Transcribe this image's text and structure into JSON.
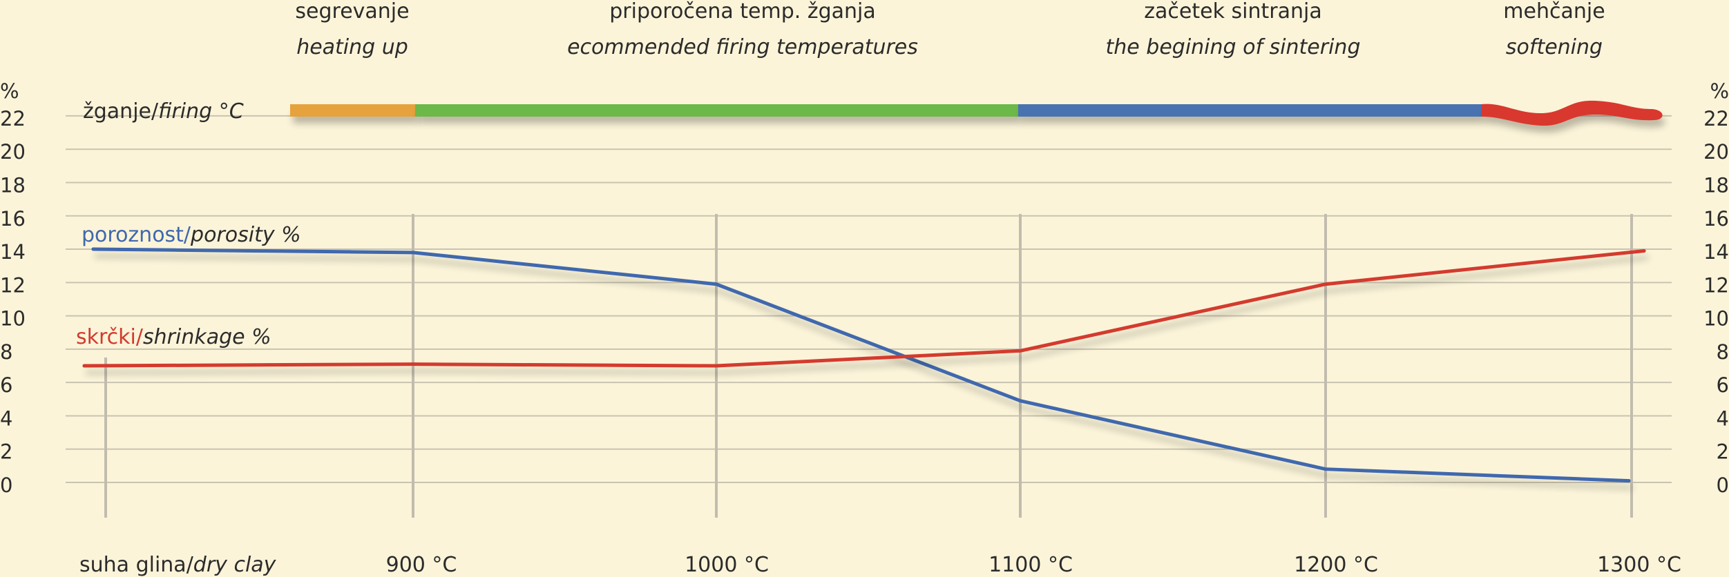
{
  "chart_data": {
    "type": "line",
    "phases": [
      {
        "label": "segrevanje",
        "label_en": "heating up",
        "color": "#e6a23c",
        "from": "dry",
        "to": 900
      },
      {
        "label": "priporočena temp. žganja",
        "label_en": "ecommended firing temperatures",
        "color": "#6cb84a",
        "from": 900,
        "to": 1100
      },
      {
        "label": "začetek sintranja",
        "label_en": "the begining of sintering",
        "color": "#4a72b0",
        "from": 1100,
        "to": 1250
      },
      {
        "label": "mehčanje",
        "label_en": "softening",
        "color": "#d9392f",
        "from": 1250,
        "to": 1300
      }
    ],
    "firing_label": "žganje/",
    "firing_label_en": "firing °C",
    "categories": [
      "suha glina/",
      "900 °C",
      "1000 °C",
      "1100 °C",
      "1200 °C",
      "1300 °C"
    ],
    "first_category_en": "dry clay",
    "yunit": "%",
    "yticks": [
      "22",
      "20",
      "18",
      "16",
      "14",
      "12",
      "10",
      "8",
      "6",
      "4",
      "2",
      "0"
    ],
    "ylim": [
      0,
      22
    ],
    "grid": true,
    "series": [
      {
        "name": "poroznost/",
        "name_en": "porosity %",
        "color": "#3f68ad",
        "values": [
          14,
          13.8,
          11.9,
          4.9,
          0.8,
          0.1
        ]
      },
      {
        "name": "skrčki/",
        "name_en": "shrinkage %",
        "color": "#d33a2e",
        "values": [
          7,
          7.1,
          7.0,
          7.9,
          11.9,
          13.9
        ]
      }
    ]
  }
}
